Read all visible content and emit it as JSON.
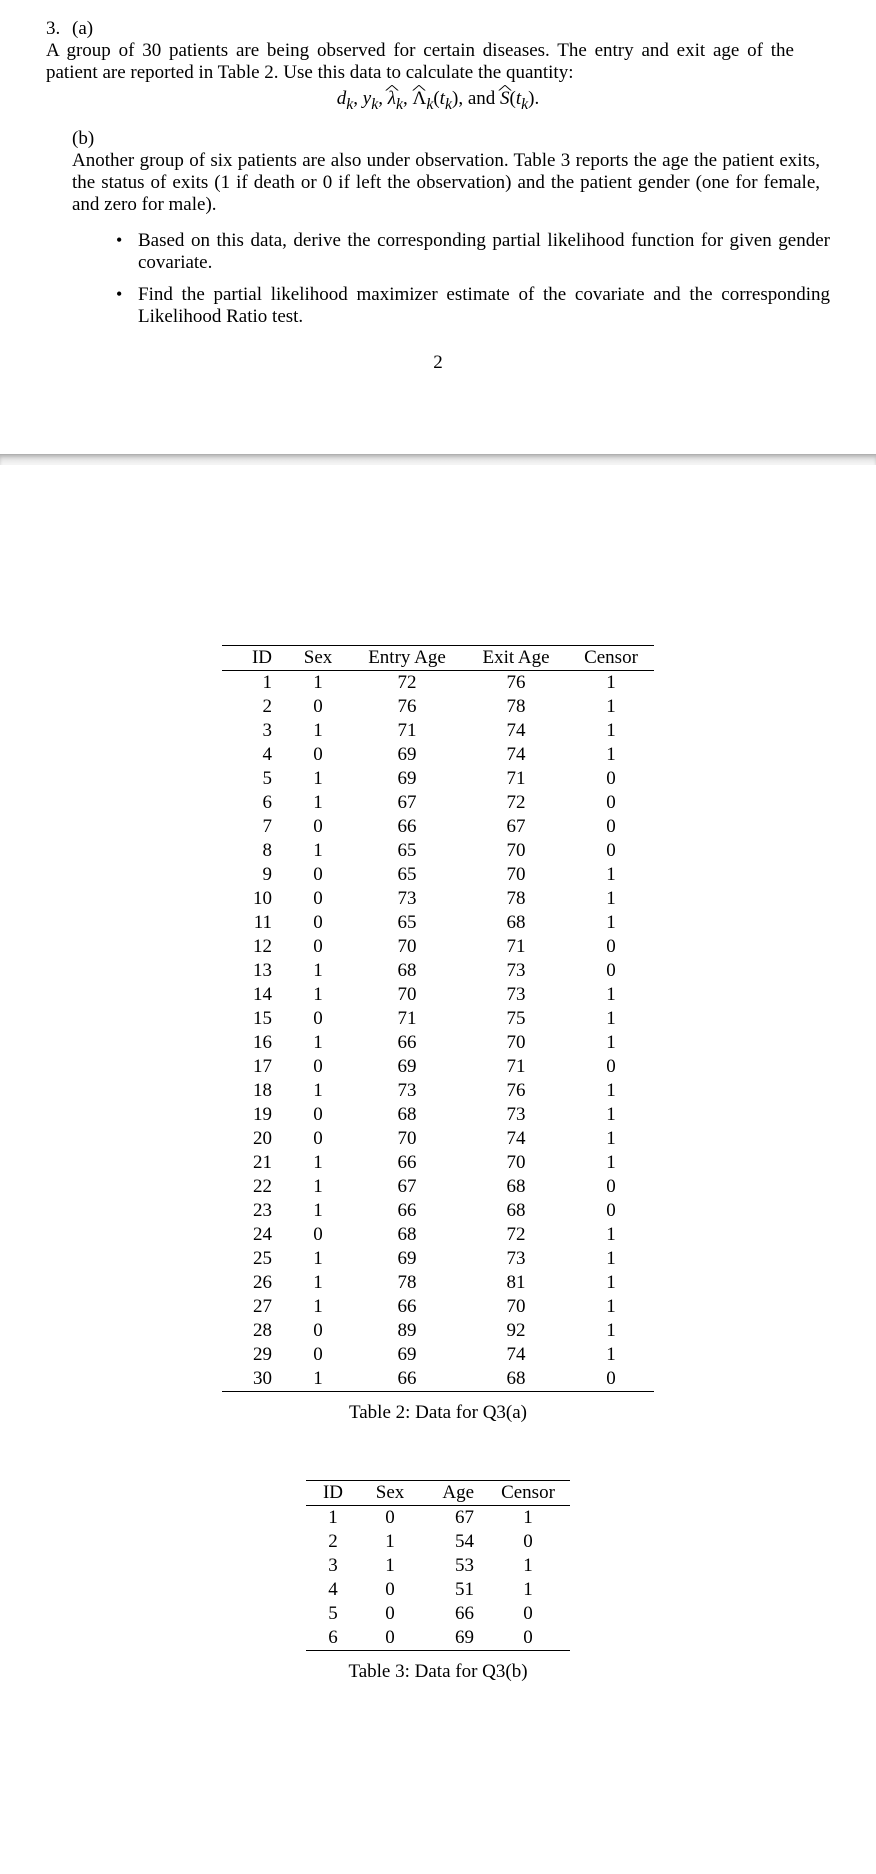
{
  "question": {
    "number": "3.",
    "part_a": {
      "label": "(a)",
      "text": "A group of 30 patients are being observed for certain diseases. The entry and exit age of the patient are reported in Table 2. Use this data to calculate the quantity:"
    },
    "formula": {
      "d": "d",
      "k1": "k",
      "comma1": ", ",
      "y": "y",
      "k2": "k",
      "comma2": ", ",
      "lam": "λ",
      "k3": "k",
      "comma3": ", ",
      "Lam": "Λ",
      "k4": "k",
      "open1": "(",
      "t1": "t",
      "k5": "k",
      "close1": ")",
      "comma4": ",  and ",
      "S": "S",
      "open2": "(",
      "t2": "t",
      "k6": "k",
      "close2": ")."
    },
    "part_b": {
      "label": "(b)",
      "text": "Another group of six patients are also under observation. Table 3 reports the age the patient exits, the status of exits (1 if death or 0 if left the observation) and the patient gender (one for female, and zero for male).",
      "bullets": [
        "Based on this data, derive the corresponding partial likelihood function for given gender covariate.",
        "Find the partial likelihood maximizer estimate of the covariate and the corresponding Likelihood Ratio test."
      ]
    },
    "page_number": "2"
  },
  "table2": {
    "headers": [
      "ID",
      "Sex",
      "Entry Age",
      "Exit Age",
      "Censor"
    ],
    "rows": [
      [
        1,
        1,
        72,
        76,
        1
      ],
      [
        2,
        0,
        76,
        78,
        1
      ],
      [
        3,
        1,
        71,
        74,
        1
      ],
      [
        4,
        0,
        69,
        74,
        1
      ],
      [
        5,
        1,
        69,
        71,
        0
      ],
      [
        6,
        1,
        67,
        72,
        0
      ],
      [
        7,
        0,
        66,
        67,
        0
      ],
      [
        8,
        1,
        65,
        70,
        0
      ],
      [
        9,
        0,
        65,
        70,
        1
      ],
      [
        10,
        0,
        73,
        78,
        1
      ],
      [
        11,
        0,
        65,
        68,
        1
      ],
      [
        12,
        0,
        70,
        71,
        0
      ],
      [
        13,
        1,
        68,
        73,
        0
      ],
      [
        14,
        1,
        70,
        73,
        1
      ],
      [
        15,
        0,
        71,
        75,
        1
      ],
      [
        16,
        1,
        66,
        70,
        1
      ],
      [
        17,
        0,
        69,
        71,
        0
      ],
      [
        18,
        1,
        73,
        76,
        1
      ],
      [
        19,
        0,
        68,
        73,
        1
      ],
      [
        20,
        0,
        70,
        74,
        1
      ],
      [
        21,
        1,
        66,
        70,
        1
      ],
      [
        22,
        1,
        67,
        68,
        0
      ],
      [
        23,
        1,
        66,
        68,
        0
      ],
      [
        24,
        0,
        68,
        72,
        1
      ],
      [
        25,
        1,
        69,
        73,
        1
      ],
      [
        26,
        1,
        78,
        81,
        1
      ],
      [
        27,
        1,
        66,
        70,
        1
      ],
      [
        28,
        0,
        89,
        92,
        1
      ],
      [
        29,
        0,
        69,
        74,
        1
      ],
      [
        30,
        1,
        66,
        68,
        0
      ]
    ],
    "caption": "Table 2: Data for Q3(a)"
  },
  "table3": {
    "headers": [
      "ID",
      "Sex",
      "Age",
      "Censor"
    ],
    "rows": [
      [
        1,
        0,
        67,
        1
      ],
      [
        2,
        1,
        54,
        0
      ],
      [
        3,
        1,
        53,
        1
      ],
      [
        4,
        0,
        51,
        1
      ],
      [
        5,
        0,
        66,
        0
      ],
      [
        6,
        0,
        69,
        0
      ]
    ],
    "caption": "Table 3: Data for Q3(b)"
  }
}
